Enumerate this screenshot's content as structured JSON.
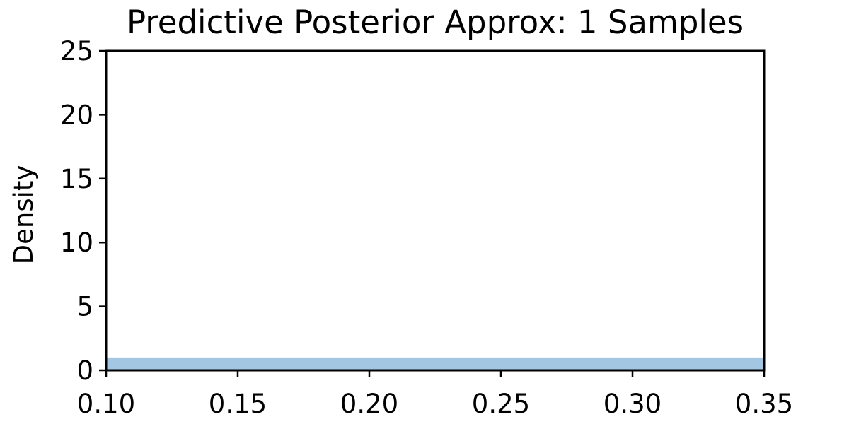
{
  "chart_data": {
    "type": "area",
    "title": "Predictive Posterior Approx: 1 Samples",
    "xlabel": "",
    "ylabel": "Density",
    "xlim": [
      0.1,
      0.35
    ],
    "ylim": [
      0,
      25
    ],
    "xticks": [
      "0.10",
      "0.15",
      "0.20",
      "0.25",
      "0.30",
      "0.35"
    ],
    "yticks": [
      "0",
      "5",
      "10",
      "15",
      "20",
      "25"
    ],
    "grid": false,
    "series": [
      {
        "x": [
          0.1,
          0.35
        ],
        "y": [
          1.0,
          1.0
        ],
        "color": "#a3c6e2"
      }
    ]
  }
}
